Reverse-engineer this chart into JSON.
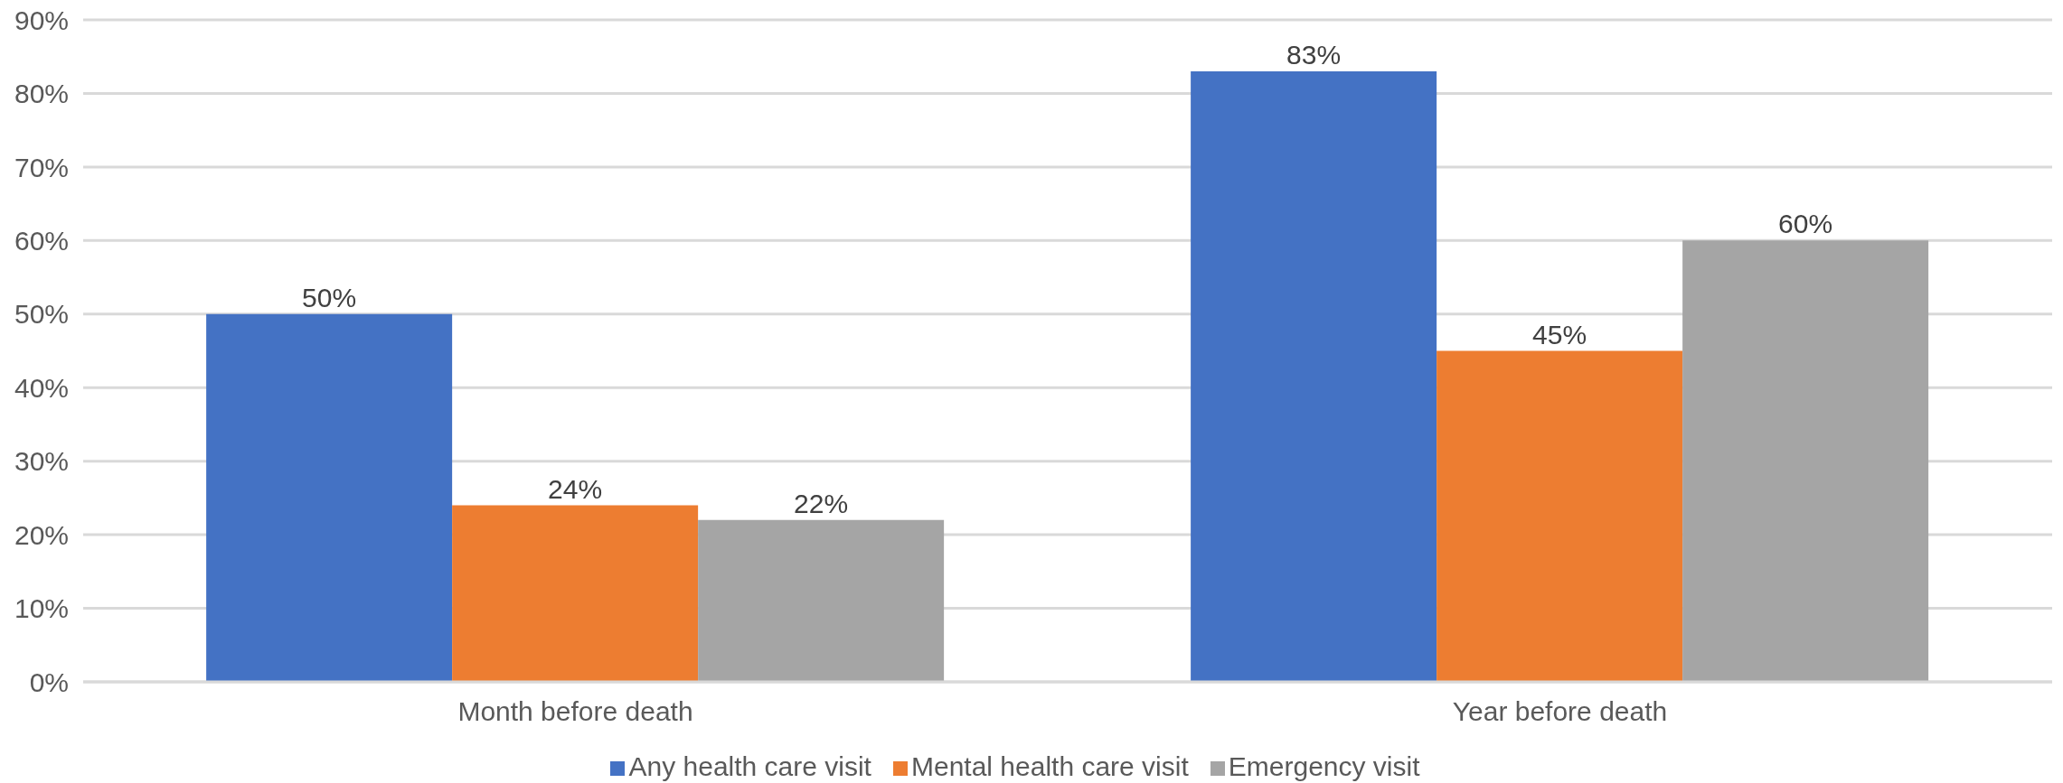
{
  "chart_data": {
    "type": "bar",
    "categories": [
      "Month before death",
      "Year before death"
    ],
    "series": [
      {
        "name": "Any health care visit",
        "color": "#4472c4",
        "values": [
          50,
          83
        ],
        "value_labels": [
          "50%",
          "83%"
        ]
      },
      {
        "name": "Mental health care visit",
        "color": "#ed7d31",
        "values": [
          24,
          45
        ],
        "value_labels": [
          "24%",
          "45%"
        ]
      },
      {
        "name": "Emergency visit",
        "color": "#a5a5a5",
        "values": [
          22,
          60
        ],
        "value_labels": [
          "22%",
          "60%"
        ]
      }
    ],
    "ylim": [
      0,
      90
    ],
    "yticks": [
      {
        "value": 0,
        "label": "0%"
      },
      {
        "value": 10,
        "label": "10%"
      },
      {
        "value": 20,
        "label": "20%"
      },
      {
        "value": 30,
        "label": "30%"
      },
      {
        "value": 40,
        "label": "40%"
      },
      {
        "value": 50,
        "label": "50%"
      },
      {
        "value": 60,
        "label": "60%"
      },
      {
        "value": 70,
        "label": "70%"
      },
      {
        "value": 80,
        "label": "80%"
      },
      {
        "value": 90,
        "label": "90%"
      }
    ],
    "grid": "y",
    "legend": "bottom"
  }
}
